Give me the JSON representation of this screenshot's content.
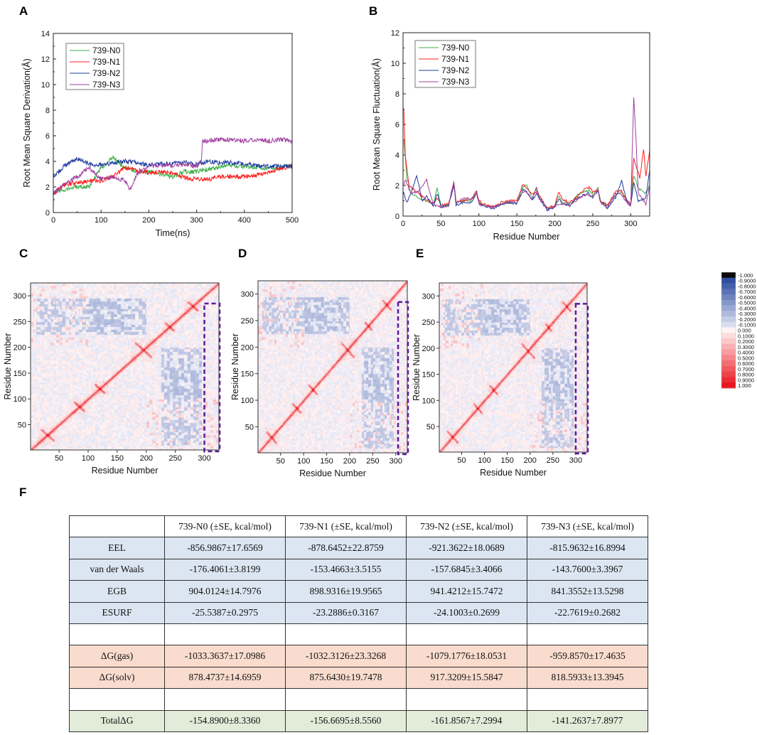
{
  "panel_labels": [
    "A",
    "B",
    "C",
    "D",
    "E",
    "F"
  ],
  "series_colors": {
    "739-N0": "#3fae49",
    "739-N1": "#ff1f1f",
    "739-N2": "#1f3ca0",
    "739-N3": "#a040a0"
  },
  "chart_data": [
    {
      "panel": "A",
      "type": "line",
      "xlabel": "Time(ns)",
      "ylabel": "Root Mean Square Derivation(Å)",
      "xlim": [
        0,
        500
      ],
      "ylim": [
        0,
        14
      ],
      "xticks": [
        0,
        100,
        200,
        300,
        400,
        500
      ],
      "yticks": [
        0,
        2,
        4,
        6,
        8,
        10,
        12,
        14
      ],
      "legend": "top-left",
      "series": [
        {
          "name": "739-N0",
          "x": [
            0,
            25,
            50,
            75,
            100,
            125,
            150,
            175,
            200,
            225,
            250,
            275,
            300,
            325,
            350,
            375,
            400,
            425,
            450,
            475,
            500
          ],
          "values": [
            1.5,
            1.8,
            2.0,
            2.0,
            3.5,
            4.3,
            3.5,
            3.2,
            3.2,
            3.0,
            2.8,
            3.2,
            3.2,
            3.4,
            3.6,
            3.7,
            3.6,
            3.5,
            3.5,
            3.5,
            3.7
          ]
        },
        {
          "name": "739-N1",
          "x": [
            0,
            25,
            50,
            75,
            100,
            125,
            150,
            175,
            200,
            225,
            250,
            275,
            300,
            325,
            350,
            375,
            400,
            425,
            450,
            475,
            500
          ],
          "values": [
            1.5,
            2.2,
            2.3,
            2.4,
            2.5,
            2.8,
            3.5,
            3.3,
            3.1,
            3.2,
            3.1,
            2.7,
            2.6,
            2.6,
            2.8,
            2.8,
            2.8,
            2.9,
            3.2,
            3.4,
            3.7
          ]
        },
        {
          "name": "739-N2",
          "x": [
            0,
            25,
            50,
            75,
            100,
            125,
            150,
            175,
            200,
            225,
            250,
            275,
            300,
            325,
            350,
            375,
            400,
            425,
            450,
            475,
            500
          ],
          "values": [
            2.8,
            3.7,
            4.2,
            3.8,
            3.7,
            3.9,
            4.0,
            3.9,
            3.7,
            3.8,
            3.8,
            3.9,
            3.8,
            4.0,
            3.9,
            3.9,
            3.8,
            3.7,
            3.6,
            3.6,
            3.6
          ]
        },
        {
          "name": "739-N3",
          "x": [
            0,
            25,
            50,
            75,
            100,
            125,
            150,
            160,
            175,
            200,
            225,
            250,
            275,
            300,
            310,
            312,
            325,
            350,
            375,
            400,
            425,
            450,
            475,
            500
          ],
          "values": [
            1.5,
            2.3,
            2.8,
            3.5,
            2.6,
            2.8,
            2.5,
            1.8,
            3.0,
            3.6,
            3.7,
            3.7,
            3.8,
            3.6,
            4.0,
            5.6,
            5.6,
            5.7,
            5.7,
            5.6,
            5.7,
            5.6,
            5.7,
            5.6
          ]
        }
      ]
    },
    {
      "panel": "B",
      "type": "line",
      "xlabel": "Residue Number",
      "ylabel": "Root Mean Square Fluctuation(Å)",
      "xlim": [
        0,
        325
      ],
      "ylim": [
        0,
        12
      ],
      "xticks": [
        0,
        50,
        100,
        150,
        200,
        250,
        300
      ],
      "yticks": [
        0,
        2,
        4,
        6,
        8,
        10,
        12
      ],
      "legend": "top-left",
      "series": [
        {
          "name": "739-N0",
          "x": [
            1,
            5,
            10,
            20,
            30,
            40,
            45,
            50,
            60,
            67,
            70,
            80,
            90,
            97,
            100,
            110,
            120,
            130,
            140,
            150,
            158,
            163,
            170,
            176,
            180,
            190,
            200,
            205,
            210,
            220,
            230,
            240,
            245,
            250,
            257,
            260,
            270,
            280,
            288,
            295,
            300,
            304,
            310,
            320,
            325
          ],
          "values": [
            5.0,
            2.5,
            1.5,
            1.2,
            1.0,
            0.8,
            1.8,
            0.7,
            0.7,
            2.1,
            0.9,
            1.0,
            1.0,
            1.6,
            0.9,
            0.7,
            0.6,
            0.8,
            0.9,
            0.9,
            1.9,
            2.0,
            1.2,
            1.8,
            1.2,
            0.5,
            0.6,
            1.3,
            0.9,
            0.8,
            1.4,
            1.6,
            1.7,
            1.4,
            1.8,
            1.0,
            0.7,
            1.4,
            1.6,
            1.0,
            0.8,
            2.7,
            1.8,
            1.5,
            2.0
          ]
        },
        {
          "name": "739-N1",
          "x": [
            1,
            3,
            8,
            20,
            30,
            40,
            45,
            50,
            60,
            67,
            70,
            80,
            90,
            97,
            100,
            110,
            120,
            130,
            140,
            150,
            158,
            163,
            170,
            176,
            180,
            190,
            200,
            205,
            210,
            220,
            230,
            240,
            245,
            250,
            257,
            260,
            270,
            280,
            288,
            295,
            300,
            304,
            307,
            312,
            317,
            320,
            325
          ],
          "values": [
            7.0,
            4.0,
            2.0,
            1.5,
            1.1,
            0.8,
            1.2,
            0.7,
            0.8,
            2.2,
            0.9,
            1.0,
            1.1,
            1.7,
            1.0,
            0.7,
            0.6,
            0.9,
            1.0,
            1.0,
            2.1,
            1.8,
            1.4,
            1.6,
            1.3,
            0.5,
            0.7,
            1.6,
            1.1,
            0.9,
            1.3,
            1.8,
            1.9,
            1.6,
            1.7,
            1.0,
            0.7,
            1.6,
            1.7,
            1.0,
            0.8,
            3.8,
            3.3,
            2.5,
            4.4,
            2.6,
            4.3
          ]
        },
        {
          "name": "739-N2",
          "x": [
            1,
            5,
            10,
            18,
            25,
            31,
            40,
            45,
            50,
            60,
            67,
            70,
            80,
            90,
            97,
            100,
            110,
            120,
            130,
            140,
            150,
            158,
            163,
            170,
            176,
            180,
            190,
            200,
            205,
            210,
            220,
            230,
            240,
            245,
            250,
            257,
            260,
            270,
            280,
            288,
            295,
            300,
            304,
            310,
            320,
            325
          ],
          "values": [
            1.5,
            0.9,
            1.4,
            2.7,
            1.0,
            1.3,
            0.6,
            1.5,
            0.6,
            0.7,
            2.0,
            0.7,
            0.9,
            0.9,
            1.5,
            0.8,
            0.6,
            0.5,
            0.8,
            0.9,
            0.8,
            1.7,
            1.6,
            1.0,
            1.5,
            1.1,
            0.4,
            0.6,
            1.1,
            0.8,
            0.7,
            1.2,
            1.4,
            1.5,
            1.2,
            1.6,
            0.9,
            0.5,
            1.2,
            2.3,
            1.0,
            0.7,
            2.2,
            1.0,
            1.2,
            3.0
          ]
        },
        {
          "name": "739-N3",
          "x": [
            1,
            3,
            10,
            20,
            31,
            40,
            50,
            60,
            67,
            70,
            80,
            90,
            97,
            100,
            110,
            120,
            130,
            140,
            150,
            158,
            163,
            170,
            176,
            180,
            190,
            200,
            210,
            220,
            230,
            240,
            250,
            257,
            260,
            270,
            280,
            288,
            295,
            300,
            304,
            307,
            310,
            320,
            325
          ],
          "values": [
            2.0,
            2.4,
            1.5,
            1.6,
            2.4,
            0.7,
            0.6,
            0.7,
            2.2,
            0.8,
            1.2,
            1.1,
            1.5,
            0.8,
            0.6,
            0.6,
            0.8,
            0.9,
            0.9,
            1.6,
            1.6,
            1.1,
            1.9,
            1.2,
            0.5,
            0.6,
            0.8,
            0.7,
            1.1,
            1.4,
            1.3,
            1.7,
            0.9,
            0.6,
            1.5,
            1.4,
            0.9,
            0.6,
            7.8,
            5.0,
            1.5,
            0.8,
            2.0
          ]
        }
      ]
    },
    {
      "panel": "C",
      "type": "heatmap",
      "xlabel": "Residue Number",
      "ylabel": "Residue Number",
      "xlim": [
        1,
        325
      ],
      "ylim": [
        1,
        325
      ],
      "xticks": [
        50,
        100,
        150,
        200,
        250,
        300
      ],
      "yticks": [
        50,
        100,
        150,
        200,
        250,
        300
      ],
      "highlight_residues": [
        300,
        325
      ],
      "value_range": [
        -1,
        1
      ]
    },
    {
      "panel": "D",
      "type": "heatmap",
      "xlabel": "Residue Number",
      "ylabel": "Residue Number",
      "xlim": [
        1,
        325
      ],
      "ylim": [
        1,
        325
      ],
      "xticks": [
        50,
        100,
        150,
        200,
        250,
        300
      ],
      "yticks": [
        50,
        100,
        150,
        200,
        250,
        300
      ],
      "highlight_residues": [
        305,
        325
      ],
      "value_range": [
        -1,
        1
      ]
    },
    {
      "panel": "E",
      "type": "heatmap",
      "xlabel": "Residue Number",
      "ylabel": "Residue Number",
      "xlim": [
        1,
        325
      ],
      "ylim": [
        1,
        325
      ],
      "xticks": [
        50,
        100,
        150,
        200,
        250,
        300
      ],
      "yticks": [
        50,
        100,
        150,
        200,
        250,
        300
      ],
      "highlight_residues": [
        300,
        325
      ],
      "value_range": [
        -1,
        1
      ]
    }
  ],
  "colorbar": {
    "labels": [
      "-1.000",
      "-0.9000",
      "-0.8000",
      "-0.7000",
      "-0.6000",
      "-0.5000",
      "-0.4000",
      "-0.3000",
      "-0.2000",
      "-0.1000",
      "0.000",
      "0.1000",
      "0.2000",
      "0.3000",
      "0.4000",
      "0.5000",
      "0.6000",
      "0.7000",
      "0.8000",
      "0.9000",
      "1.000"
    ],
    "values": [
      -1,
      -0.9,
      -0.8,
      -0.7,
      -0.6,
      -0.5,
      -0.4,
      -0.3,
      -0.2,
      -0.1,
      0,
      0.1,
      0.2,
      0.3,
      0.4,
      0.5,
      0.6,
      0.7,
      0.8,
      0.9,
      1
    ]
  },
  "table": {
    "header": [
      "",
      "739-N0 (±SE, kcal/mol)",
      "739-N1 (±SE, kcal/mol)",
      "739-N2 (±SE, kcal/mol)",
      "739-N3 (±SE, kcal/mol)"
    ],
    "rows": [
      {
        "group": "blue",
        "cells": [
          "EEL",
          "-856.9867±17.6569",
          "-878.6452±22.8759",
          "-921.3622±18.0689",
          "-815.9632±16.8994"
        ]
      },
      {
        "group": "blue",
        "cells": [
          "van der Waals",
          "-176.4061±3.8199",
          "-153.4663±3.5155",
          "-157.6845±3.4066",
          "-143.7600±3.3967"
        ]
      },
      {
        "group": "blue",
        "cells": [
          "EGB",
          "904.0124±14.7976",
          "898.9316±19.9565",
          "941.4212±15.7472",
          "841.3552±13.5298"
        ]
      },
      {
        "group": "blue",
        "cells": [
          "ESURF",
          "-25.5387±0.2975",
          "-23.2886±0.3167",
          "-24.1003±0.2699",
          "-22.7619±0.2682"
        ]
      },
      {
        "group": "blank",
        "cells": [
          "",
          "",
          "",
          "",
          ""
        ]
      },
      {
        "group": "peach",
        "cells": [
          "ΔG(gas)",
          "-1033.3637±17.0986",
          "-1032.3126±23.3268",
          "-1079.1776±18.0531",
          "-959.8570±17.4635"
        ]
      },
      {
        "group": "peach",
        "cells": [
          "ΔG(solv)",
          "878.4737±14.6959",
          "875.6430±19.7478",
          "917.3209±15.5847",
          "818.5933±13.3945"
        ]
      },
      {
        "group": "blank",
        "cells": [
          "",
          "",
          "",
          "",
          ""
        ]
      },
      {
        "group": "green",
        "cells": [
          "TotalΔG",
          "-154.8900±8.3360",
          "-156.6695±8.5560",
          "-161.8567±7.2994",
          "-141.2637±7.8977"
        ]
      }
    ]
  }
}
